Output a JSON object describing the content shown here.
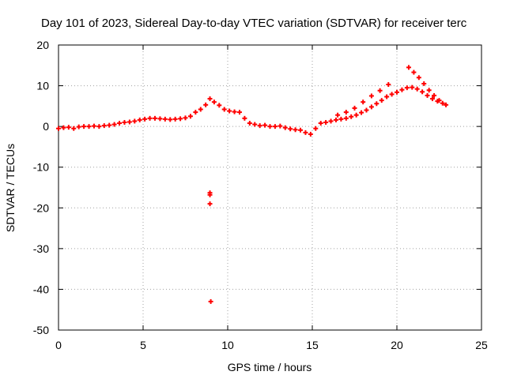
{
  "chart_data": {
    "type": "scatter",
    "title": "Day 101 of 2023, Sidereal Day-to-day VTEC variation (SDTVAR) for receiver terc",
    "xlabel": "GPS time / hours",
    "ylabel": "SDTVAR / TECUs",
    "xlim": [
      0,
      25
    ],
    "ylim": [
      -50,
      20
    ],
    "xticks": [
      0,
      5,
      10,
      15,
      20,
      25
    ],
    "yticks": [
      -50,
      -40,
      -30,
      -20,
      -10,
      0,
      10,
      20
    ],
    "xtick_labels": [
      "0",
      "5",
      "10",
      "15",
      "20",
      "25"
    ],
    "ytick_labels": [
      "-50",
      "-40",
      "-30",
      "-20",
      "-10",
      "0",
      "10",
      "20"
    ],
    "grid": true,
    "marker": "+",
    "color": "#ff0000",
    "series": [
      {
        "name": "SDTVAR",
        "x": [
          0.0,
          0.3,
          0.6,
          0.9,
          1.2,
          1.5,
          1.8,
          2.1,
          2.4,
          2.7,
          3.0,
          3.3,
          3.6,
          3.9,
          4.2,
          4.5,
          4.8,
          5.1,
          5.4,
          5.7,
          6.0,
          6.3,
          6.6,
          6.9,
          7.2,
          7.5,
          7.8,
          8.1,
          8.4,
          8.7,
          8.95,
          9.2,
          9.5,
          9.8,
          10.1,
          10.4,
          10.7,
          11.0,
          11.3,
          11.6,
          11.9,
          12.2,
          12.5,
          12.8,
          13.1,
          13.4,
          13.7,
          14.0,
          14.3,
          14.6,
          14.9,
          15.2,
          15.5,
          15.8,
          16.1,
          16.4,
          16.7,
          17.0,
          17.3,
          17.6,
          17.9,
          18.2,
          18.5,
          18.8,
          19.1,
          19.4,
          19.7,
          20.0,
          20.3,
          20.6,
          20.9,
          21.2,
          21.5,
          21.8,
          22.1,
          22.4,
          22.7,
          22.9,
          8.95,
          8.95,
          9.0,
          8.95,
          16.5,
          17.0,
          17.5,
          18.0,
          18.5,
          19.0,
          19.5,
          20.7,
          21.0,
          21.3,
          21.6,
          21.9,
          22.2,
          22.5
        ],
        "y": [
          -0.5,
          -0.3,
          -0.2,
          -0.5,
          -0.1,
          0.0,
          0.0,
          0.1,
          0.0,
          0.2,
          0.3,
          0.5,
          0.8,
          1.0,
          1.1,
          1.3,
          1.6,
          1.8,
          2.0,
          2.0,
          1.9,
          1.8,
          1.7,
          1.8,
          1.9,
          2.1,
          2.5,
          3.5,
          4.2,
          5.3,
          6.8,
          6.0,
          5.2,
          4.2,
          3.8,
          3.6,
          3.5,
          2.0,
          0.8,
          0.5,
          0.2,
          0.3,
          0.0,
          0.0,
          0.1,
          -0.3,
          -0.6,
          -0.8,
          -0.9,
          -1.5,
          -1.9,
          -0.5,
          0.8,
          1.0,
          1.3,
          1.6,
          1.8,
          2.0,
          2.4,
          2.8,
          3.4,
          4.0,
          4.8,
          5.6,
          6.4,
          7.3,
          7.9,
          8.4,
          9.0,
          9.5,
          9.6,
          9.2,
          8.5,
          7.6,
          6.8,
          6.2,
          5.7,
          5.3,
          -16.3,
          -19.0,
          -43.0,
          -16.8,
          2.8,
          3.5,
          4.5,
          6.0,
          7.5,
          8.8,
          10.3,
          14.5,
          13.3,
          12.0,
          10.5,
          8.9,
          7.6,
          6.4
        ]
      }
    ]
  }
}
